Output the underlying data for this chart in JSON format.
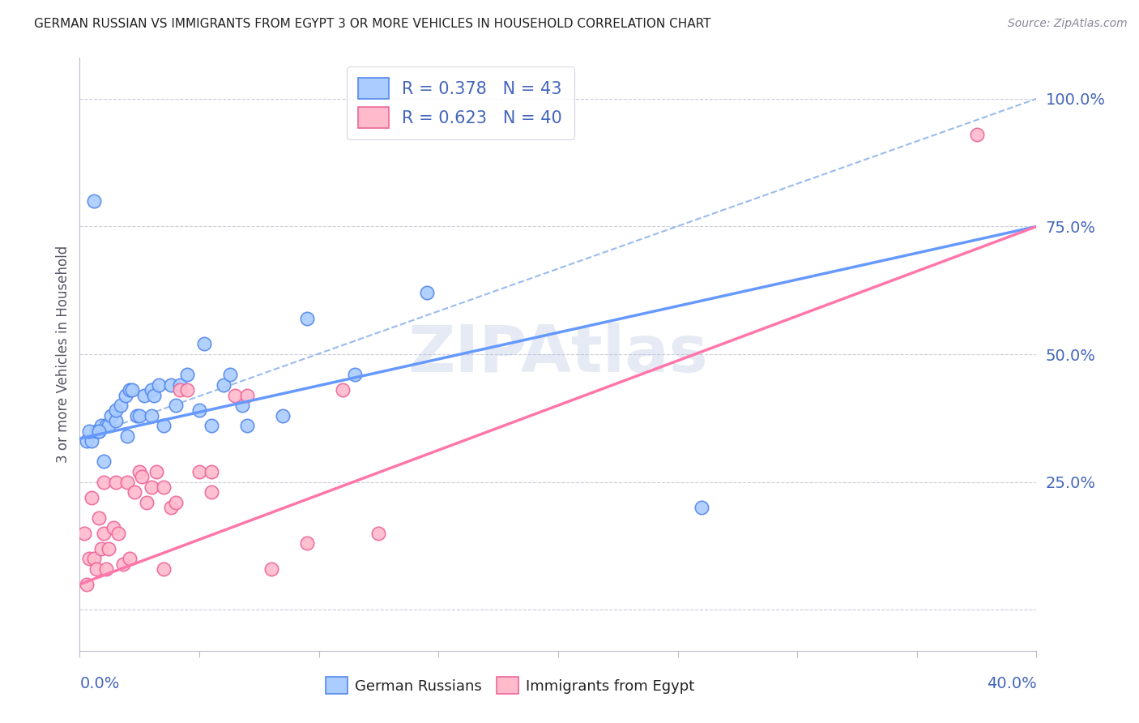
{
  "title": "GERMAN RUSSIAN VS IMMIGRANTS FROM EGYPT 3 OR MORE VEHICLES IN HOUSEHOLD CORRELATION CHART",
  "source": "Source: ZipAtlas.com",
  "ylabel": "3 or more Vehicles in Household",
  "xlim": [
    0.0,
    40.0
  ],
  "ylim": [
    -8,
    108
  ],
  "legend_label1": "R = 0.378   N = 43",
  "legend_label2": "R = 0.623   N = 40",
  "legend_entry1": "German Russians",
  "legend_entry2": "Immigrants from Egypt",
  "color_blue": "#6699ff",
  "color_pink": "#ff77aa",
  "color_blue_light": "#aaccff",
  "color_pink_light": "#ffbbcc",
  "color_blue_scatter_edge": "#5588ee",
  "color_pink_scatter_edge": "#ee6699",
  "title_color": "#222222",
  "axis_label_color": "#4466bb",
  "grid_color": "#ccccdd",
  "watermark_color": "#aabbdd",
  "blue_scatter_x": [
    0.3,
    0.5,
    0.6,
    0.7,
    0.8,
    0.9,
    1.0,
    1.1,
    1.2,
    1.3,
    1.5,
    1.5,
    1.7,
    1.9,
    2.0,
    2.1,
    2.2,
    2.4,
    2.5,
    2.7,
    3.0,
    3.0,
    3.1,
    3.3,
    3.5,
    3.8,
    4.0,
    4.2,
    4.5,
    5.0,
    5.2,
    5.5,
    6.0,
    6.3,
    6.8,
    7.0,
    8.5,
    9.5,
    11.5,
    14.5,
    26.0,
    0.4,
    0.8
  ],
  "blue_scatter_y": [
    33,
    33,
    80,
    35,
    35,
    36,
    29,
    36,
    36,
    38,
    37,
    39,
    40,
    42,
    34,
    43,
    43,
    38,
    38,
    42,
    38,
    43,
    42,
    44,
    36,
    44,
    40,
    44,
    46,
    39,
    52,
    36,
    44,
    46,
    40,
    36,
    38,
    57,
    46,
    62,
    20,
    35,
    35
  ],
  "pink_scatter_x": [
    0.2,
    0.3,
    0.4,
    0.5,
    0.6,
    0.7,
    0.8,
    0.9,
    1.0,
    1.0,
    1.1,
    1.2,
    1.4,
    1.5,
    1.6,
    1.8,
    2.0,
    2.1,
    2.3,
    2.5,
    2.6,
    2.8,
    3.0,
    3.2,
    3.5,
    3.5,
    3.8,
    4.0,
    4.2,
    4.5,
    5.0,
    5.5,
    5.5,
    6.5,
    7.0,
    8.0,
    9.5,
    11.0,
    12.5,
    37.5
  ],
  "pink_scatter_y": [
    15,
    5,
    10,
    22,
    10,
    8,
    18,
    12,
    15,
    25,
    8,
    12,
    16,
    25,
    15,
    9,
    25,
    10,
    23,
    27,
    26,
    21,
    24,
    27,
    24,
    8,
    20,
    21,
    43,
    43,
    27,
    27,
    23,
    42,
    42,
    8,
    13,
    43,
    15,
    93
  ],
  "blue_line_x0": 0.0,
  "blue_line_x1": 40.0,
  "blue_line_y0": 33.5,
  "blue_line_y1": 75.0,
  "pink_line_x0": 0.0,
  "pink_line_x1": 40.0,
  "pink_line_y0": 5.0,
  "pink_line_y1": 75.0,
  "dashed_line_x0": 0.0,
  "dashed_line_x1": 40.0,
  "dashed_line_y0": 33.5,
  "dashed_line_y1": 100.0,
  "ytick_positions": [
    0,
    25,
    50,
    75,
    100
  ],
  "ytick_labels": [
    "",
    "25.0%",
    "50.0%",
    "75.0%",
    "100.0%"
  ]
}
